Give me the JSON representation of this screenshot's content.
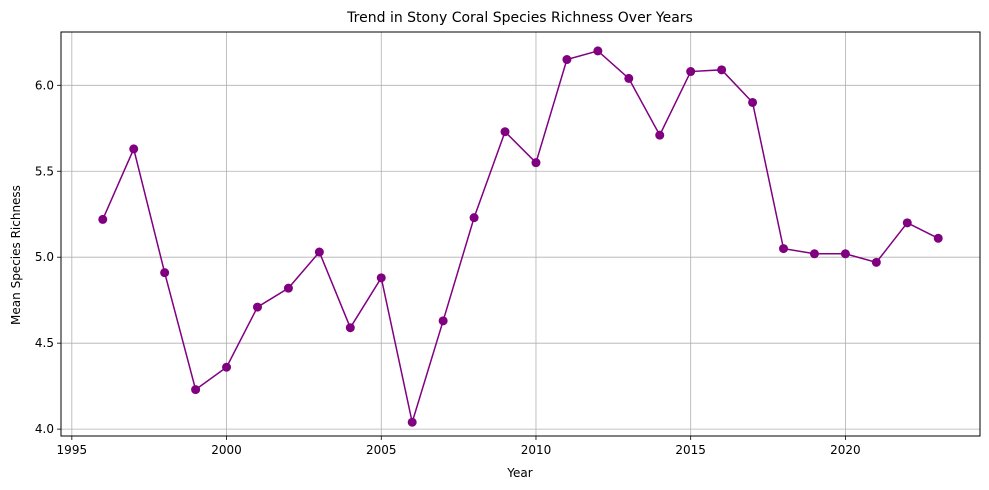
{
  "chart_data": {
    "type": "line",
    "title": "Trend in Stony Coral Species Richness Over Years",
    "xlabel": "Year",
    "ylabel": "Mean Species Richness",
    "xlim": [
      1994.65,
      2024.35
    ],
    "ylim": [
      3.96,
      6.31
    ],
    "xticks": [
      1995,
      2000,
      2005,
      2010,
      2015,
      2020
    ],
    "yticks": [
      4.0,
      4.5,
      5.0,
      5.5,
      6.0
    ],
    "grid": true,
    "color": "#800080",
    "marker": "circle",
    "x": [
      1996,
      1997,
      1998,
      1999,
      2000,
      2001,
      2002,
      2003,
      2004,
      2005,
      2006,
      2007,
      2008,
      2009,
      2010,
      2011,
      2012,
      2013,
      2014,
      2015,
      2016,
      2017,
      2018,
      2019,
      2020,
      2021,
      2022,
      2023
    ],
    "y": [
      5.22,
      5.63,
      4.91,
      4.23,
      4.36,
      4.71,
      4.82,
      5.03,
      4.59,
      4.88,
      4.04,
      4.63,
      5.23,
      5.73,
      5.55,
      6.15,
      6.2,
      6.04,
      5.71,
      6.08,
      6.09,
      5.9,
      5.05,
      5.02,
      5.02,
      4.97,
      5.2,
      5.11
    ]
  }
}
